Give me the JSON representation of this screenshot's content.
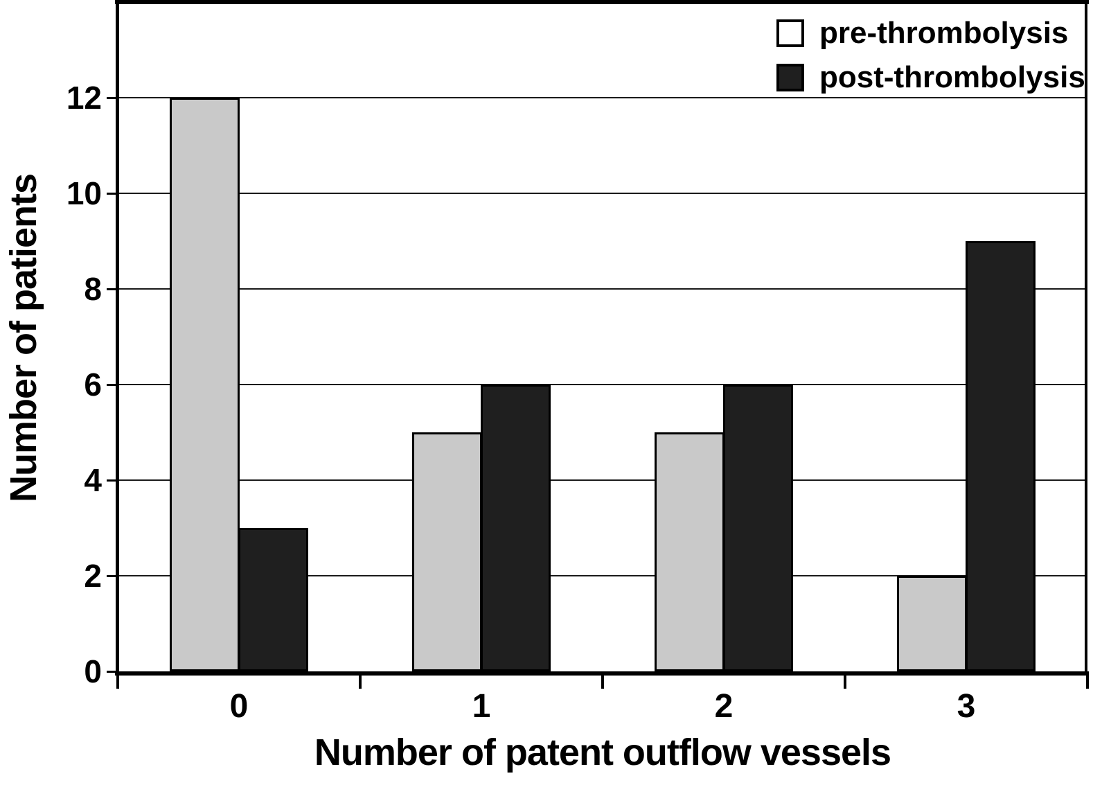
{
  "chart_data": {
    "type": "bar",
    "categories": [
      "0",
      "1",
      "2",
      "3"
    ],
    "series": [
      {
        "name": "pre-thrombolysis",
        "values": [
          12,
          5,
          5,
          2
        ],
        "bar_color": "#c9c9c9",
        "legend_swatch_color": "#ffffff"
      },
      {
        "name": "post-thrombolysis",
        "values": [
          3,
          6,
          6,
          9
        ],
        "bar_color": "#1f1f1f",
        "legend_swatch_color": "#1f1f1f"
      }
    ],
    "title": "",
    "xlabel": "Number of patent outflow vessels",
    "ylabel": "Number of patients",
    "ylim": [
      0,
      14
    ],
    "yticks": [
      0,
      2,
      4,
      6,
      8,
      10,
      12
    ],
    "grid": true,
    "legend_position": "top-right",
    "axis_color": "#000000",
    "grid_color": "#1a1a1a",
    "background": "#ffffff"
  }
}
